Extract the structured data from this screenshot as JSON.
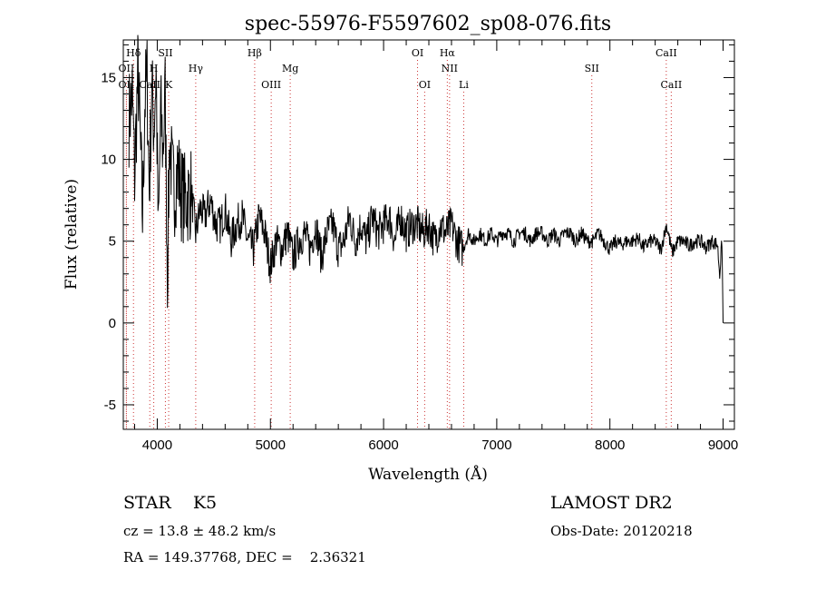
{
  "chart_data": {
    "type": "line",
    "title": "spec-55976-F5597602_sp08-076.fits",
    "xlabel": "Wavelength (Å)",
    "ylabel": "Flux (relative)",
    "xlim": [
      3700,
      9100
    ],
    "ylim": [
      -6.5,
      17.3
    ],
    "x_ticks": [
      4000,
      5000,
      6000,
      7000,
      8000,
      9000
    ],
    "y_ticks": [
      -5,
      0,
      5,
      10,
      15
    ],
    "series": [
      {
        "x": [
          3750,
          3780,
          3800,
          3830,
          3850,
          3870,
          3890,
          3910,
          3930,
          3950,
          3970,
          3990,
          4010,
          4030,
          4050,
          4070,
          4090,
          4110,
          4130,
          4150,
          4180,
          4210,
          4250,
          4300,
          4340,
          4380,
          4420,
          4470,
          4520,
          4560,
          4600,
          4650,
          4700,
          4750,
          4800,
          4850,
          4900,
          4950,
          5000,
          5050,
          5100,
          5150,
          5200,
          5250,
          5300,
          5350,
          5400,
          5450,
          5500,
          5550,
          5600,
          5650,
          5700,
          5750,
          5800,
          5850,
          5900,
          5950,
          6000,
          6050,
          6100,
          6150,
          6200,
          6250,
          6300,
          6350,
          6400,
          6450,
          6500,
          6550,
          6600,
          6650,
          6700,
          6750,
          6800,
          6850,
          6900,
          6950,
          7000,
          7050,
          7100,
          7150,
          7200,
          7250,
          7300,
          7350,
          7400,
          7450,
          7500,
          7550,
          7600,
          7650,
          7700,
          7750,
          7800,
          7850,
          7900,
          7950,
          8000,
          8050,
          8100,
          8150,
          8200,
          8250,
          8300,
          8350,
          8400,
          8450,
          8500,
          8550,
          8600,
          8650,
          8700,
          8750,
          8800,
          8850,
          8900,
          8950,
          8970,
          8990,
          9000
        ],
        "y": [
          12.5,
          14.0,
          9.0,
          15.5,
          11.0,
          6.5,
          13.5,
          15.0,
          8.0,
          14.5,
          12.0,
          15.5,
          5.0,
          13.0,
          10.5,
          14.0,
          3.0,
          11.5,
          9.0,
          8.0,
          9.5,
          8.0,
          7.5,
          8.0,
          5.5,
          7.0,
          6.5,
          7.5,
          6.0,
          6.0,
          7.0,
          5.0,
          6.0,
          6.5,
          5.0,
          4.5,
          6.5,
          5.5,
          3.5,
          5.0,
          4.5,
          5.5,
          4.0,
          5.0,
          5.5,
          4.5,
          6.0,
          4.0,
          5.5,
          6.0,
          4.5,
          5.0,
          6.5,
          5.0,
          6.0,
          5.0,
          6.5,
          5.5,
          6.0,
          6.5,
          5.0,
          6.5,
          5.5,
          6.0,
          6.0,
          5.5,
          6.0,
          5.0,
          6.0,
          5.5,
          6.0,
          5.0,
          4.5,
          5.5,
          5.0,
          5.5,
          5.0,
          5.5,
          5.0,
          5.5,
          5.5,
          5.0,
          5.5,
          5.5,
          5.0,
          5.5,
          5.5,
          5.0,
          5.5,
          5.0,
          5.5,
          5.5,
          5.0,
          5.5,
          5.0,
          5.0,
          5.5,
          5.0,
          4.5,
          5.0,
          4.8,
          5.0,
          5.0,
          5.2,
          4.6,
          5.0,
          5.0,
          4.5,
          6.0,
          4.3,
          5.0,
          5.0,
          4.7,
          5.0,
          5.0,
          4.6,
          5.0,
          4.8,
          3.0,
          5.0,
          0.0
        ]
      }
    ],
    "line_markers": [
      {
        "label": "Hδ",
        "x": 3790,
        "row": 0
      },
      {
        "label": "OII",
        "x": 3727,
        "row": 1
      },
      {
        "label": "OII",
        "x": 3727,
        "row": 2
      },
      {
        "label": "H",
        "x": 3969,
        "row": 1
      },
      {
        "label": "SII",
        "x": 4072,
        "row": 0
      },
      {
        "label": "CaII",
        "x": 3934,
        "row": 2
      },
      {
        "label": "K",
        "x": 4101,
        "row": 2
      },
      {
        "label": "Hγ",
        "x": 4340,
        "row": 1
      },
      {
        "label": "Hβ",
        "x": 4861,
        "row": 0
      },
      {
        "label": "OIII",
        "x": 5007,
        "row": 2
      },
      {
        "label": "Mg",
        "x": 5175,
        "row": 1
      },
      {
        "label": "OI",
        "x": 6300,
        "row": 0
      },
      {
        "label": "OI",
        "x": 6363,
        "row": 2
      },
      {
        "label": "Hα",
        "x": 6563,
        "row": 0
      },
      {
        "label": "NII",
        "x": 6583,
        "row": 1
      },
      {
        "label": "Li",
        "x": 6708,
        "row": 2
      },
      {
        "label": "SII",
        "x": 7840,
        "row": 1
      },
      {
        "label": "CaII",
        "x": 8498,
        "row": 0
      },
      {
        "label": "CaII",
        "x": 8542,
        "row": 2
      }
    ]
  },
  "info": {
    "class_text": "STAR    K5",
    "cz_text": "cz = 13.8 ± 48.2 km/s",
    "radec_text": "RA = 149.37768, DEC =    2.36321",
    "survey_text": "LAMOST DR2",
    "obsdate_text": "Obs-Date: 20120218"
  }
}
